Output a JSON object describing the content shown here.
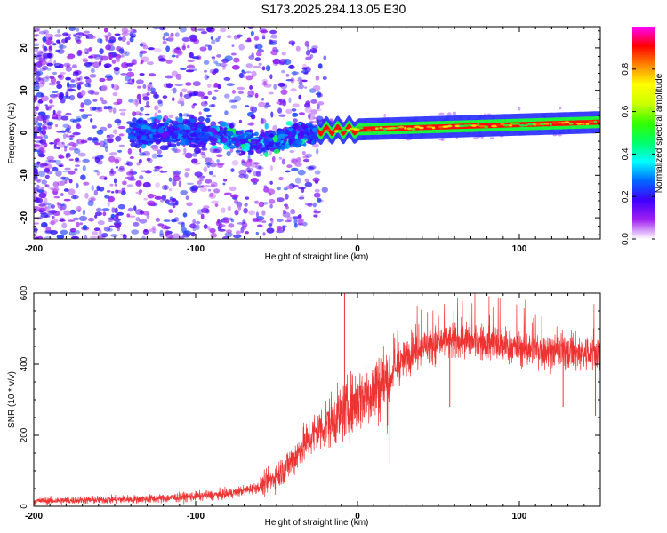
{
  "title": "S173.2025.284.13.05.E30",
  "chart_data": [
    {
      "type": "heatmap",
      "name": "spectrogram",
      "xlabel": "Height of straight line (km)",
      "ylabel": "Frequency (Hz)",
      "xlim": [
        -200,
        150
      ],
      "ylim": [
        -25,
        25
      ],
      "xticks": [
        -200,
        -100,
        0,
        100
      ],
      "yticks": [
        -20,
        -10,
        0,
        10,
        20
      ],
      "colorbar": {
        "label": "Normalized spectral amplitude",
        "range": [
          0,
          1
        ],
        "ticks": [
          0.0,
          0.2,
          0.4,
          0.6,
          0.8
        ],
        "colormap": [
          "#ffffff",
          "#a020f0",
          "#3f00ff",
          "#0066ff",
          "#00ffff",
          "#00ff66",
          "#33ff00",
          "#ccff00",
          "#ffff00",
          "#ff8800",
          "#ff0000",
          "#ff00ff"
        ]
      },
      "features": [
        {
          "description": "scattered purple noise",
          "x_range": [
            -200,
            -30
          ],
          "y_range": [
            -25,
            25
          ],
          "amplitude": 0.15
        },
        {
          "description": "blue band",
          "x_range": [
            -140,
            -25
          ],
          "center_hz": 0,
          "amplitude": 0.25
        },
        {
          "description": "red/yellow line",
          "x_range": [
            -25,
            150
          ],
          "center_hz_start": 0.5,
          "center_hz_end": 2.5,
          "amplitude": 0.9
        }
      ]
    },
    {
      "type": "line",
      "name": "snr",
      "xlabel": "Height of straight line (km)",
      "ylabel": "SNR (10 * v/v)",
      "xlim": [
        -200,
        150
      ],
      "ylim": [
        0,
        600
      ],
      "xticks": [
        -200,
        -100,
        0,
        100
      ],
      "yticks": [
        0,
        200,
        400,
        600
      ],
      "color": "#ee3333",
      "trend": {
        "x": [
          -200,
          -160,
          -120,
          -100,
          -80,
          -60,
          -50,
          -40,
          -30,
          -20,
          -10,
          0,
          10,
          20,
          30,
          40,
          60,
          80,
          100,
          120,
          150
        ],
        "y": [
          15,
          18,
          22,
          28,
          35,
          55,
          85,
          130,
          190,
          230,
          260,
          300,
          330,
          360,
          420,
          450,
          465,
          460,
          445,
          435,
          430
        ]
      },
      "spikes": [
        {
          "x": -8,
          "y": 605
        },
        {
          "x": 20,
          "y": 120
        },
        {
          "x": 57,
          "y": 280
        },
        {
          "x": 127,
          "y": 280
        },
        {
          "x": 147,
          "y": 255
        }
      ]
    }
  ]
}
